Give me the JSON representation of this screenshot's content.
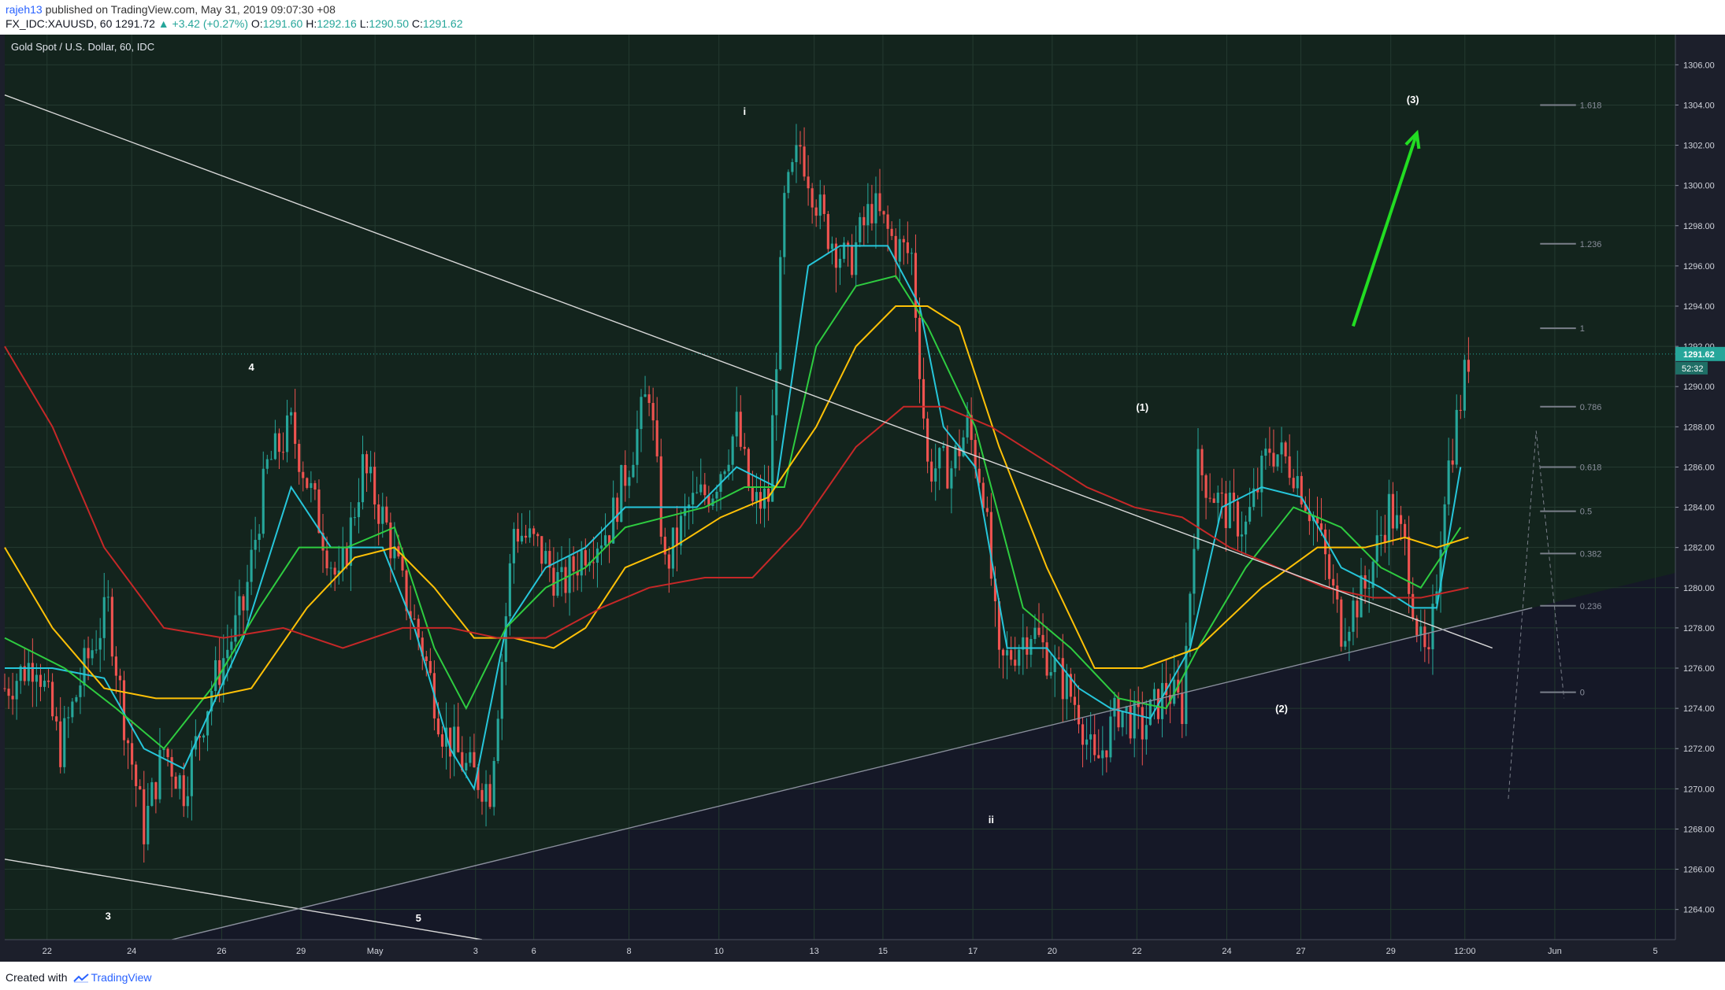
{
  "header": {
    "username": "rajeh13",
    "published_text": " published on TradingView.com, May 31, 2019 09:07:30 +08",
    "symbol": "FX_IDC:XAUUSD, 60",
    "last": "1291.72",
    "change": "▲ +3.42 (+0.27%)",
    "o_label": "O:",
    "o_val": "1291.60",
    "h_label": "H:",
    "h_val": "1292.16",
    "l_label": "L:",
    "l_val": "1290.50",
    "c_label": "C:",
    "c_val": "1291.62"
  },
  "footer": {
    "created_with": "Created with",
    "brand": "TradingView"
  },
  "colors": {
    "background_upper": "#13241d",
    "background_lower": "#151827",
    "candle_up": "#26a69a",
    "candle_down": "#ef5350",
    "ma_fast": "#26c6da",
    "ma_mid": "#2ecc40",
    "ma_yellow": "#ffc107",
    "ma_red": "#c62828",
    "arrow": "#22dd22",
    "price_label": "#26a69a"
  },
  "chart_data": {
    "type": "candlestick",
    "title": "Gold Spot / U.S. Dollar, 60, IDC",
    "x_ticks": [
      "22",
      "24",
      "26",
      "29",
      "May",
      "3",
      "6",
      "8",
      "10",
      "13",
      "15",
      "17",
      "20",
      "22",
      "24",
      "27",
      "29",
      "12:00",
      "Jun",
      "5"
    ],
    "y_ticks": [
      "1306.00",
      "1304.00",
      "1302.00",
      "1300.00",
      "1298.00",
      "1296.00",
      "1294.00",
      "1292.00",
      "1290.00",
      "1288.00",
      "1286.00",
      "1284.00",
      "1282.00",
      "1280.00",
      "1278.00",
      "1276.00",
      "1274.00",
      "1272.00",
      "1270.00",
      "1268.00",
      "1266.00",
      "1264.00"
    ],
    "ylim": [
      1262.5,
      1307.5
    ],
    "last_price": "1291.62",
    "countdown": "52:32",
    "price_path": [
      [
        0,
        1275
      ],
      [
        8,
        1276.5
      ],
      [
        14,
        1272
      ],
      [
        20,
        1276
      ],
      [
        26,
        1279
      ],
      [
        30,
        1273.5
      ],
      [
        35,
        1268
      ],
      [
        40,
        1272
      ],
      [
        45,
        1270
      ],
      [
        52,
        1275
      ],
      [
        60,
        1279
      ],
      [
        66,
        1286
      ],
      [
        72,
        1288
      ],
      [
        78,
        1284
      ],
      [
        84,
        1280
      ],
      [
        90,
        1286
      ],
      [
        96,
        1283
      ],
      [
        100,
        1280
      ],
      [
        105,
        1277
      ],
      [
        110,
        1273
      ],
      [
        116,
        1271
      ],
      [
        122,
        1270
      ],
      [
        128,
        1283
      ],
      [
        134,
        1282
      ],
      [
        140,
        1280
      ],
      [
        146,
        1282
      ],
      [
        152,
        1283
      ],
      [
        158,
        1287
      ],
      [
        162,
        1290
      ],
      [
        166,
        1281
      ],
      [
        172,
        1284
      ],
      [
        178,
        1285
      ],
      [
        184,
        1288
      ],
      [
        188,
        1284
      ],
      [
        192,
        1284.5
      ],
      [
        196,
        1299
      ],
      [
        200,
        1302
      ],
      [
        206,
        1298
      ],
      [
        212,
        1296
      ],
      [
        218,
        1299
      ],
      [
        224,
        1297
      ],
      [
        228,
        1296.5
      ],
      [
        232,
        1286
      ],
      [
        238,
        1286
      ],
      [
        242,
        1288
      ],
      [
        246,
        1285
      ],
      [
        250,
        1276
      ],
      [
        258,
        1278
      ],
      [
        264,
        1276
      ],
      [
        270,
        1274
      ],
      [
        274,
        1271
      ],
      [
        280,
        1274
      ],
      [
        286,
        1273
      ],
      [
        292,
        1275
      ],
      [
        296,
        1274
      ],
      [
        300,
        1286
      ],
      [
        306,
        1284
      ],
      [
        312,
        1283
      ],
      [
        318,
        1287
      ],
      [
        324,
        1286
      ],
      [
        330,
        1283
      ],
      [
        336,
        1278
      ],
      [
        342,
        1280
      ],
      [
        348,
        1284
      ],
      [
        352,
        1282
      ],
      [
        356,
        1277
      ],
      [
        358,
        1276
      ],
      [
        362,
        1285
      ],
      [
        368,
        1291.5
      ]
    ],
    "moving_averages": [
      {
        "color": "ma_fast",
        "points": [
          [
            0,
            1276
          ],
          [
            12,
            1276
          ],
          [
            25,
            1275.5
          ],
          [
            35,
            1272
          ],
          [
            45,
            1271
          ],
          [
            60,
            1277.5
          ],
          [
            72,
            1285
          ],
          [
            82,
            1282
          ],
          [
            95,
            1282
          ],
          [
            103,
            1278
          ],
          [
            112,
            1272
          ],
          [
            118,
            1270
          ],
          [
            126,
            1278
          ],
          [
            136,
            1281
          ],
          [
            146,
            1282
          ],
          [
            156,
            1284
          ],
          [
            164,
            1284
          ],
          [
            174,
            1284
          ],
          [
            184,
            1286
          ],
          [
            194,
            1285
          ],
          [
            202,
            1296
          ],
          [
            210,
            1297
          ],
          [
            222,
            1297
          ],
          [
            230,
            1294
          ],
          [
            236,
            1288
          ],
          [
            244,
            1286
          ],
          [
            252,
            1277
          ],
          [
            262,
            1277
          ],
          [
            270,
            1275
          ],
          [
            278,
            1274
          ],
          [
            288,
            1273.5
          ],
          [
            298,
            1277
          ],
          [
            306,
            1284
          ],
          [
            316,
            1285
          ],
          [
            326,
            1284.5
          ],
          [
            336,
            1281
          ],
          [
            346,
            1280
          ],
          [
            354,
            1279
          ],
          [
            360,
            1279
          ],
          [
            366,
            1286
          ]
        ]
      },
      {
        "color": "ma_mid",
        "points": [
          [
            0,
            1277.5
          ],
          [
            15,
            1276
          ],
          [
            28,
            1274
          ],
          [
            40,
            1272
          ],
          [
            52,
            1275
          ],
          [
            64,
            1279
          ],
          [
            74,
            1282
          ],
          [
            86,
            1282
          ],
          [
            98,
            1283
          ],
          [
            108,
            1277
          ],
          [
            116,
            1274
          ],
          [
            126,
            1278
          ],
          [
            136,
            1280
          ],
          [
            146,
            1281
          ],
          [
            156,
            1283
          ],
          [
            166,
            1283.5
          ],
          [
            176,
            1284
          ],
          [
            186,
            1285
          ],
          [
            196,
            1285
          ],
          [
            204,
            1292
          ],
          [
            214,
            1295
          ],
          [
            224,
            1295.5
          ],
          [
            232,
            1293
          ],
          [
            244,
            1288
          ],
          [
            256,
            1279
          ],
          [
            268,
            1277
          ],
          [
            280,
            1274.5
          ],
          [
            292,
            1274
          ],
          [
            300,
            1277
          ],
          [
            312,
            1281
          ],
          [
            324,
            1284
          ],
          [
            336,
            1283
          ],
          [
            346,
            1281
          ],
          [
            356,
            1280
          ],
          [
            366,
            1283
          ]
        ]
      },
      {
        "color": "ma_yellow",
        "points": [
          [
            0,
            1282
          ],
          [
            12,
            1278
          ],
          [
            25,
            1275
          ],
          [
            38,
            1274.5
          ],
          [
            50,
            1274.5
          ],
          [
            62,
            1275
          ],
          [
            76,
            1279
          ],
          [
            88,
            1281.5
          ],
          [
            98,
            1282
          ],
          [
            108,
            1280
          ],
          [
            118,
            1277.5
          ],
          [
            128,
            1277.5
          ],
          [
            138,
            1277
          ],
          [
            146,
            1278
          ],
          [
            156,
            1281
          ],
          [
            168,
            1282
          ],
          [
            180,
            1283.5
          ],
          [
            192,
            1284.5
          ],
          [
            204,
            1288
          ],
          [
            214,
            1292
          ],
          [
            224,
            1294
          ],
          [
            232,
            1294
          ],
          [
            240,
            1293
          ],
          [
            250,
            1287
          ],
          [
            262,
            1281
          ],
          [
            274,
            1276
          ],
          [
            286,
            1276
          ],
          [
            300,
            1277
          ],
          [
            316,
            1280
          ],
          [
            330,
            1282
          ],
          [
            342,
            1282
          ],
          [
            352,
            1282.5
          ],
          [
            360,
            1282
          ],
          [
            368,
            1282.5
          ]
        ]
      },
      {
        "color": "ma_red",
        "points": [
          [
            0,
            1292
          ],
          [
            12,
            1288
          ],
          [
            25,
            1282
          ],
          [
            40,
            1278
          ],
          [
            55,
            1277.5
          ],
          [
            70,
            1278
          ],
          [
            85,
            1277
          ],
          [
            100,
            1278
          ],
          [
            112,
            1278
          ],
          [
            124,
            1277.5
          ],
          [
            136,
            1277.5
          ],
          [
            150,
            1279
          ],
          [
            162,
            1280
          ],
          [
            176,
            1280.5
          ],
          [
            188,
            1280.5
          ],
          [
            200,
            1283
          ],
          [
            214,
            1287
          ],
          [
            226,
            1289
          ],
          [
            236,
            1289
          ],
          [
            248,
            1288
          ],
          [
            260,
            1286.5
          ],
          [
            272,
            1285
          ],
          [
            284,
            1284
          ],
          [
            296,
            1283.5
          ],
          [
            308,
            1282
          ],
          [
            320,
            1281
          ],
          [
            332,
            1280
          ],
          [
            344,
            1279.5
          ],
          [
            356,
            1279.5
          ],
          [
            368,
            1280
          ]
        ]
      }
    ],
    "trendlines": [
      {
        "from": [
          0,
          1304.5
        ],
        "to": [
          374,
          1277
        ]
      },
      {
        "from": [
          0,
          1266.5
        ],
        "to": [
          120,
          1262.5
        ]
      },
      {
        "from": [
          42,
          1262.5
        ],
        "to": [
          384,
          1279
        ]
      }
    ],
    "wave_labels": [
      {
        "text": "i",
        "x": 186,
        "y": 1303.5
      },
      {
        "text": "ii",
        "x": 248,
        "y": 1268.3
      },
      {
        "text": "4",
        "x": 62,
        "y": 1290.8
      },
      {
        "text": "3",
        "x": 26,
        "y": 1263.5
      },
      {
        "text": "5",
        "x": 104,
        "y": 1263.4
      },
      {
        "text": "(1)",
        "x": 286,
        "y": 1288.8
      },
      {
        "text": "(2)",
        "x": 321,
        "y": 1273.8
      },
      {
        "text": "(3)",
        "x": 354,
        "y": 1304.1
      }
    ],
    "fibonacci_levels": [
      {
        "label": "1.618",
        "price": 1304
      },
      {
        "label": "1.236",
        "price": 1297.1
      },
      {
        "label": "1",
        "price": 1292.9
      },
      {
        "label": "0.786",
        "price": 1289
      },
      {
        "label": "0.618",
        "price": 1286
      },
      {
        "label": "0.5",
        "price": 1283.8
      },
      {
        "label": "0.382",
        "price": 1281.7
      },
      {
        "label": "0.236",
        "price": 1279.1
      },
      {
        "label": "0",
        "price": 1274.8
      }
    ],
    "projection_arrow": {
      "from": [
        339,
        1293
      ],
      "to": [
        355,
        1302.6
      ]
    }
  }
}
